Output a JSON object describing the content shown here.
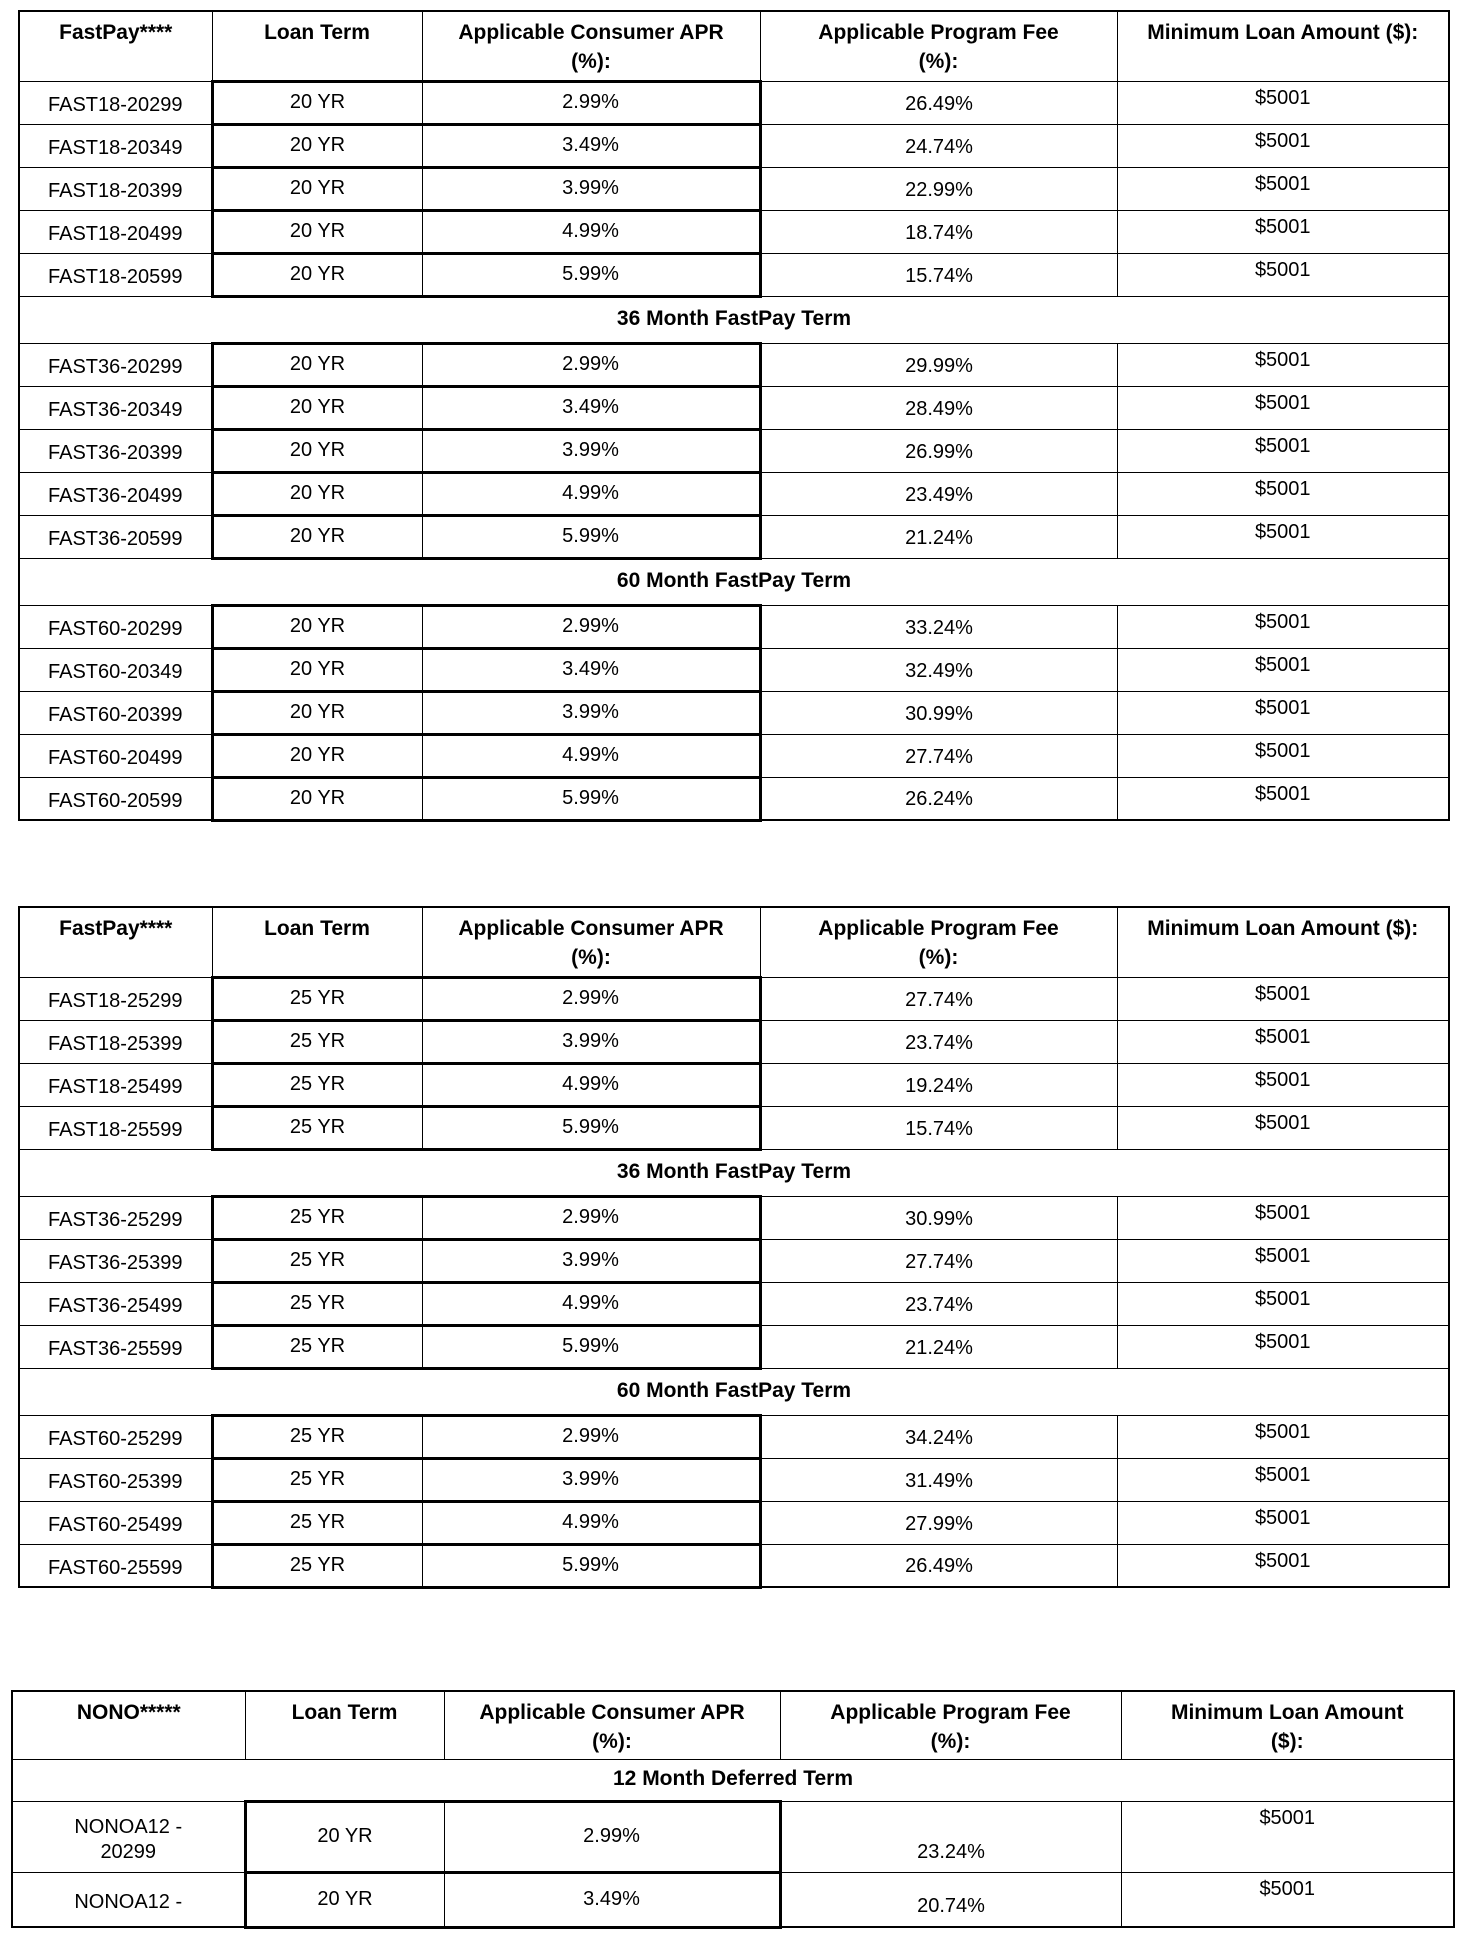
{
  "colors": {
    "text": "#000000",
    "background": "#ffffff",
    "border": "#000000"
  },
  "tables": [
    {
      "columns": [
        {
          "title": "FastPay****",
          "subtitle": ""
        },
        {
          "title": "Loan Term",
          "subtitle": ""
        },
        {
          "title": "Applicable Consumer APR",
          "subtitle": "(%):"
        },
        {
          "title": "Applicable Program Fee",
          "subtitle": "(%):"
        },
        {
          "title": "Minimum Loan Amount ($):",
          "subtitle": ""
        }
      ],
      "sections": [
        {
          "title": "",
          "rows": [
            [
              "FAST18-20299",
              "20 YR",
              "2.99%",
              "26.49%",
              "$5001"
            ],
            [
              "FAST18-20349",
              "20 YR",
              "3.49%",
              "24.74%",
              "$5001"
            ],
            [
              "FAST18-20399",
              "20 YR",
              "3.99%",
              "22.99%",
              "$5001"
            ],
            [
              "FAST18-20499",
              "20 YR",
              "4.99%",
              "18.74%",
              "$5001"
            ],
            [
              "FAST18-20599",
              "20 YR",
              "5.99%",
              "15.74%",
              "$5001"
            ]
          ]
        },
        {
          "title": "36 Month FastPay Term",
          "rows": [
            [
              "FAST36-20299",
              "20 YR",
              "2.99%",
              "29.99%",
              "$5001"
            ],
            [
              "FAST36-20349",
              "20 YR",
              "3.49%",
              "28.49%",
              "$5001"
            ],
            [
              "FAST36-20399",
              "20 YR",
              "3.99%",
              "26.99%",
              "$5001"
            ],
            [
              "FAST36-20499",
              "20 YR",
              "4.99%",
              "23.49%",
              "$5001"
            ],
            [
              "FAST36-20599",
              "20 YR",
              "5.99%",
              "21.24%",
              "$5001"
            ]
          ]
        },
        {
          "title": "60 Month FastPay Term",
          "rows": [
            [
              "FAST60-20299",
              "20 YR",
              "2.99%",
              "33.24%",
              "$5001"
            ],
            [
              "FAST60-20349",
              "20 YR",
              "3.49%",
              "32.49%",
              "$5001"
            ],
            [
              "FAST60-20399",
              "20 YR",
              "3.99%",
              "30.99%",
              "$5001"
            ],
            [
              "FAST60-20499",
              "20 YR",
              "4.99%",
              "27.74%",
              "$5001"
            ],
            [
              "FAST60-20599",
              "20 YR",
              "5.99%",
              "26.24%",
              "$5001"
            ]
          ]
        }
      ]
    },
    {
      "columns": [
        {
          "title": "FastPay****",
          "subtitle": ""
        },
        {
          "title": "Loan Term",
          "subtitle": ""
        },
        {
          "title": "Applicable Consumer APR",
          "subtitle": "(%):"
        },
        {
          "title": "Applicable Program Fee",
          "subtitle": "(%):"
        },
        {
          "title": "Minimum Loan Amount ($):",
          "subtitle": ""
        }
      ],
      "sections": [
        {
          "title": "",
          "rows": [
            [
              "FAST18-25299",
              "25 YR",
              "2.99%",
              "27.74%",
              "$5001"
            ],
            [
              "FAST18-25399",
              "25 YR",
              "3.99%",
              "23.74%",
              "$5001"
            ],
            [
              "FAST18-25499",
              "25 YR",
              "4.99%",
              "19.24%",
              "$5001"
            ],
            [
              "FAST18-25599",
              "25 YR",
              "5.99%",
              "15.74%",
              "$5001"
            ]
          ]
        },
        {
          "title": "36 Month FastPay Term",
          "rows": [
            [
              "FAST36-25299",
              "25 YR",
              "2.99%",
              "30.99%",
              "$5001"
            ],
            [
              "FAST36-25399",
              "25 YR",
              "3.99%",
              "27.74%",
              "$5001"
            ],
            [
              "FAST36-25499",
              "25 YR",
              "4.99%",
              "23.74%",
              "$5001"
            ],
            [
              "FAST36-25599",
              "25 YR",
              "5.99%",
              "21.24%",
              "$5001"
            ]
          ]
        },
        {
          "title": "60 Month FastPay Term",
          "rows": [
            [
              "FAST60-25299",
              "25 YR",
              "2.99%",
              "34.24%",
              "$5001"
            ],
            [
              "FAST60-25399",
              "25 YR",
              "3.99%",
              "31.49%",
              "$5001"
            ],
            [
              "FAST60-25499",
              "25 YR",
              "4.99%",
              "27.99%",
              "$5001"
            ],
            [
              "FAST60-25599",
              "25 YR",
              "5.99%",
              "26.49%",
              "$5001"
            ]
          ]
        }
      ]
    },
    {
      "columns": [
        {
          "title": "NONO*****",
          "subtitle": ""
        },
        {
          "title": "Loan Term",
          "subtitle": ""
        },
        {
          "title": "Applicable Consumer APR",
          "subtitle": "(%):"
        },
        {
          "title": "Applicable Program Fee",
          "subtitle": "(%):"
        },
        {
          "title": "Minimum Loan Amount",
          "subtitle": "($):"
        }
      ],
      "sections": [
        {
          "title": "12 Month Deferred Term",
          "rows": [
            [
              "NONOA12 -\n20299",
              "20 YR",
              "2.99%",
              "23.24%",
              "$5001"
            ],
            [
              "NONOA12 -",
              "20 YR",
              "3.49%",
              "20.74%",
              "$5001"
            ]
          ]
        }
      ]
    }
  ]
}
